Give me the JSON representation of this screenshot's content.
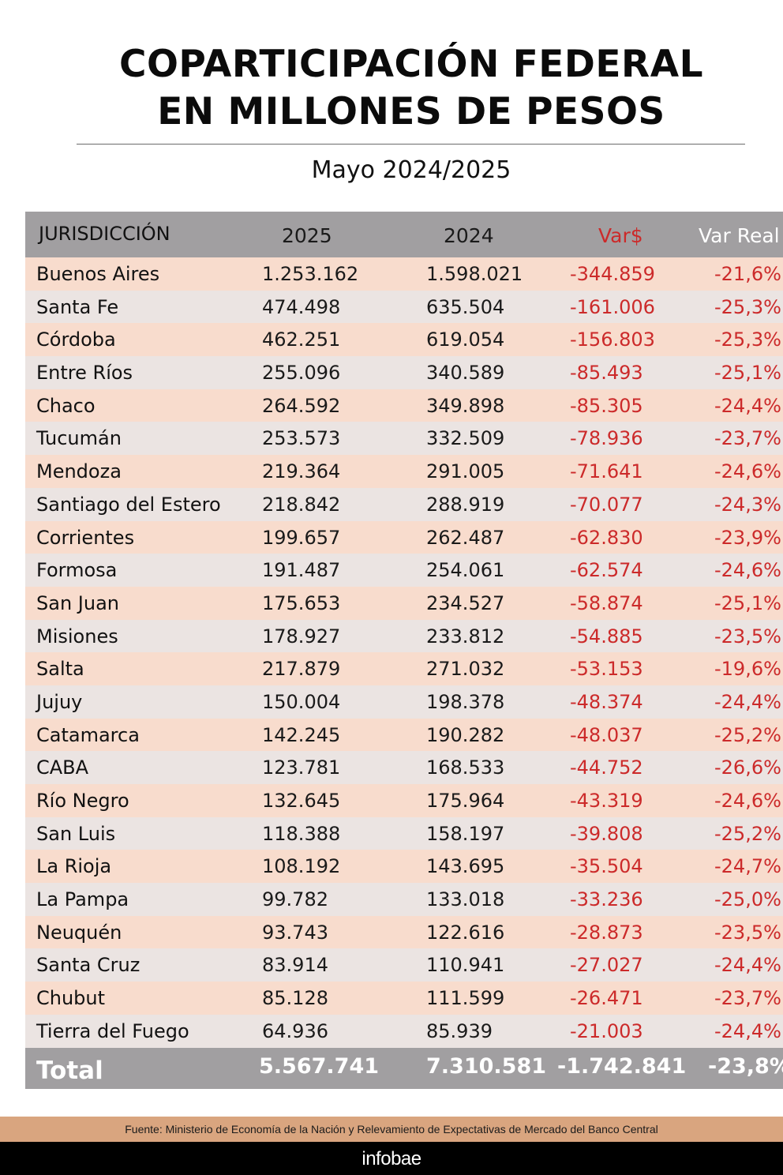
{
  "header": {
    "title_line1": "COPARTICIPACIÓN FEDERAL",
    "title_line2": "EN MILLONES DE PESOS",
    "subtitle": "Mayo 2024/2025"
  },
  "table": {
    "columns": [
      "JURISDICCIÓN",
      "2025",
      "2024",
      "Var$",
      "Var Real"
    ],
    "rows": [
      {
        "name": "Buenos Aires",
        "y2025": "1.253.162",
        "y2024": "1.598.021",
        "var": "-344.859",
        "real": "-21,6%"
      },
      {
        "name": "Santa Fe",
        "y2025": "474.498",
        "y2024": "635.504",
        "var": "-161.006",
        "real": "-25,3%"
      },
      {
        "name": "Córdoba",
        "y2025": "462.251",
        "y2024": "619.054",
        "var": "-156.803",
        "real": "-25,3%"
      },
      {
        "name": "Entre Ríos",
        "y2025": "255.096",
        "y2024": "340.589",
        "var": "-85.493",
        "real": "-25,1%"
      },
      {
        "name": "Chaco",
        "y2025": "264.592",
        "y2024": "349.898",
        "var": "-85.305",
        "real": "-24,4%"
      },
      {
        "name": "Tucumán",
        "y2025": "253.573",
        "y2024": "332.509",
        "var": "-78.936",
        "real": "-23,7%"
      },
      {
        "name": "Mendoza",
        "y2025": "219.364",
        "y2024": "291.005",
        "var": "-71.641",
        "real": "-24,6%"
      },
      {
        "name": "Santiago del Estero",
        "y2025": "218.842",
        "y2024": "288.919",
        "var": "-70.077",
        "real": "-24,3%"
      },
      {
        "name": "Corrientes",
        "y2025": "199.657",
        "y2024": "262.487",
        "var": "-62.830",
        "real": "-23,9%"
      },
      {
        "name": "Formosa",
        "y2025": "191.487",
        "y2024": "254.061",
        "var": "-62.574",
        "real": "-24,6%"
      },
      {
        "name": "San Juan",
        "y2025": "175.653",
        "y2024": "234.527",
        "var": "-58.874",
        "real": "-25,1%"
      },
      {
        "name": "Misiones",
        "y2025": "178.927",
        "y2024": "233.812",
        "var": "-54.885",
        "real": "-23,5%"
      },
      {
        "name": "Salta",
        "y2025": "217.879",
        "y2024": "271.032",
        "var": "-53.153",
        "real": "-19,6%"
      },
      {
        "name": "Jujuy",
        "y2025": "150.004",
        "y2024": "198.378",
        "var": "-48.374",
        "real": "-24,4%"
      },
      {
        "name": "Catamarca",
        "y2025": "142.245",
        "y2024": "190.282",
        "var": "-48.037",
        "real": "-25,2%"
      },
      {
        "name": "CABA",
        "y2025": "123.781",
        "y2024": "168.533",
        "var": "-44.752",
        "real": "-26,6%"
      },
      {
        "name": "Río Negro",
        "y2025": "132.645",
        "y2024": "175.964",
        "var": "-43.319",
        "real": "-24,6%"
      },
      {
        "name": "San Luis",
        "y2025": "118.388",
        "y2024": "158.197",
        "var": "-39.808",
        "real": "-25,2%"
      },
      {
        "name": "La Rioja",
        "y2025": "108.192",
        "y2024": "143.695",
        "var": "-35.504",
        "real": "-24,7%"
      },
      {
        "name": "La Pampa",
        "y2025": "99.782",
        "y2024": "133.018",
        "var": "-33.236",
        "real": "-25,0%"
      },
      {
        "name": "Neuquén",
        "y2025": "93.743",
        "y2024": "122.616",
        "var": "-28.873",
        "real": "-23,5%"
      },
      {
        "name": "Santa Cruz",
        "y2025": "83.914",
        "y2024": "110.941",
        "var": "-27.027",
        "real": "-24,4%"
      },
      {
        "name": "Chubut",
        "y2025": "85.128",
        "y2024": "111.599",
        "var": "-26.471",
        "real": "-23,7%"
      },
      {
        "name": "Tierra del Fuego",
        "y2025": "64.936",
        "y2024": "85.939",
        "var": "-21.003",
        "real": "-24,4%"
      }
    ],
    "total": {
      "name": "Total",
      "y2025": "5.567.741",
      "y2024": "7.310.581",
      "var": "-1.742.841",
      "real": "-23,8%"
    }
  },
  "colors": {
    "header_bg": "#a19fa1",
    "row_odd": "#f8dccd",
    "row_even": "#ebe4e2",
    "negative": "#cc2a2a",
    "source_bg": "#d9a57f",
    "footer_bg": "#000000"
  },
  "footer": {
    "source": "Fuente: Ministerio de Economía de la Nación y Relevamiento de Expectativas de Mercado del Banco Central",
    "brand": "infobae"
  },
  "chart_data": {
    "type": "table",
    "title": "COPARTICIPACIÓN FEDERAL EN MILLONES DE PESOS",
    "subtitle": "Mayo 2024/2025",
    "columns": [
      "JURISDICCIÓN",
      "2025",
      "2024",
      "Var$",
      "Var Real"
    ],
    "categories": [
      "Buenos Aires",
      "Santa Fe",
      "Córdoba",
      "Entre Ríos",
      "Chaco",
      "Tucumán",
      "Mendoza",
      "Santiago del Estero",
      "Corrientes",
      "Formosa",
      "San Juan",
      "Misiones",
      "Salta",
      "Jujuy",
      "Catamarca",
      "CABA",
      "Río Negro",
      "San Luis",
      "La Rioja",
      "La Pampa",
      "Neuquén",
      "Santa Cruz",
      "Chubut",
      "Tierra del Fuego"
    ],
    "series": [
      {
        "name": "2025",
        "values": [
          1253162,
          474498,
          462251,
          255096,
          264592,
          253573,
          219364,
          218842,
          199657,
          191487,
          175653,
          178927,
          217879,
          150004,
          142245,
          123781,
          132645,
          118388,
          108192,
          99782,
          93743,
          83914,
          85128,
          64936
        ]
      },
      {
        "name": "2024",
        "values": [
          1598021,
          635504,
          619054,
          340589,
          349898,
          332509,
          291005,
          288919,
          262487,
          254061,
          234527,
          233812,
          271032,
          198378,
          190282,
          168533,
          175964,
          158197,
          143695,
          133018,
          122616,
          110941,
          111599,
          85939
        ]
      },
      {
        "name": "Var$",
        "values": [
          -344859,
          -161006,
          -156803,
          -85493,
          -85305,
          -78936,
          -71641,
          -70077,
          -62830,
          -62574,
          -58874,
          -54885,
          -53153,
          -48374,
          -48037,
          -44752,
          -43319,
          -39808,
          -35504,
          -33236,
          -28873,
          -27027,
          -26471,
          -21003
        ]
      },
      {
        "name": "Var Real (%)",
        "values": [
          -21.6,
          -25.3,
          -25.3,
          -25.1,
          -24.4,
          -23.7,
          -24.6,
          -24.3,
          -23.9,
          -24.6,
          -25.1,
          -23.5,
          -19.6,
          -24.4,
          -25.2,
          -26.6,
          -24.6,
          -25.2,
          -24.7,
          -25.0,
          -23.5,
          -24.4,
          -23.7,
          -24.4
        ]
      }
    ],
    "total": {
      "2025": 5567741,
      "2024": 7310581,
      "Var$": -1742841,
      "Var Real (%)": -23.8
    }
  }
}
